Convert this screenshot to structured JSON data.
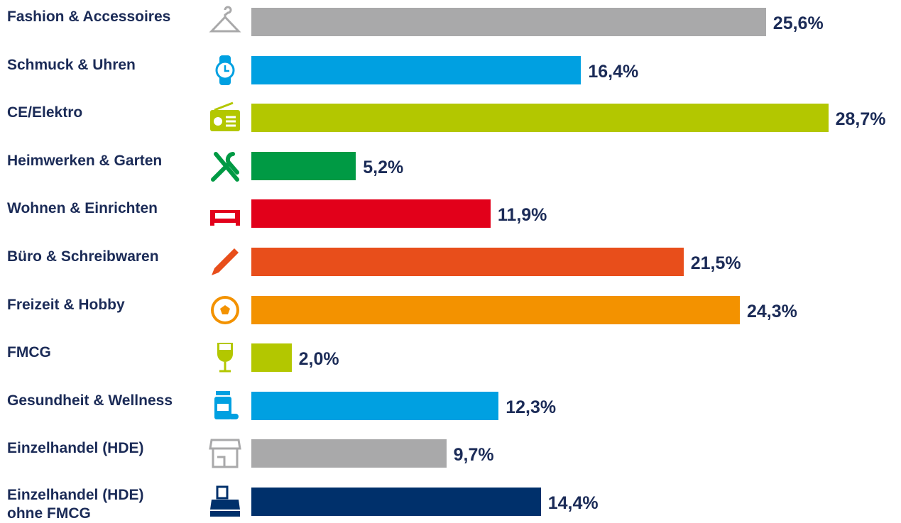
{
  "chart_data": {
    "type": "bar",
    "orientation": "horizontal",
    "categories": [
      "Fashion & Accessoires",
      "Schmuck & Uhren",
      "CE/Elektro",
      "Heimwerken & Garten",
      "Wohnen & Einrichten",
      "Büro & Schreibwaren",
      "Freizeit & Hobby",
      "FMCG",
      "Gesundheit & Wellness",
      "Einzelhandel (HDE)",
      "Einzelhandel (HDE)\nohne FMCG"
    ],
    "values": [
      25.6,
      16.4,
      28.7,
      5.2,
      11.9,
      21.5,
      24.3,
      2.0,
      12.3,
      9.7,
      14.4
    ],
    "value_labels": [
      "25,6%",
      "16,4%",
      "28,7%",
      "5,2%",
      "11,9%",
      "21,5%",
      "24,3%",
      "2,0%",
      "12,3%",
      "9,7%",
      "14,4%"
    ],
    "colors": [
      "#a9a9aa",
      "#00a0e1",
      "#b3c700",
      "#009a44",
      "#e2001a",
      "#e84e1b",
      "#f39200",
      "#b3c700",
      "#00a0e1",
      "#a9a9aa",
      "#00306b"
    ],
    "xlim": [
      0,
      32
    ]
  }
}
